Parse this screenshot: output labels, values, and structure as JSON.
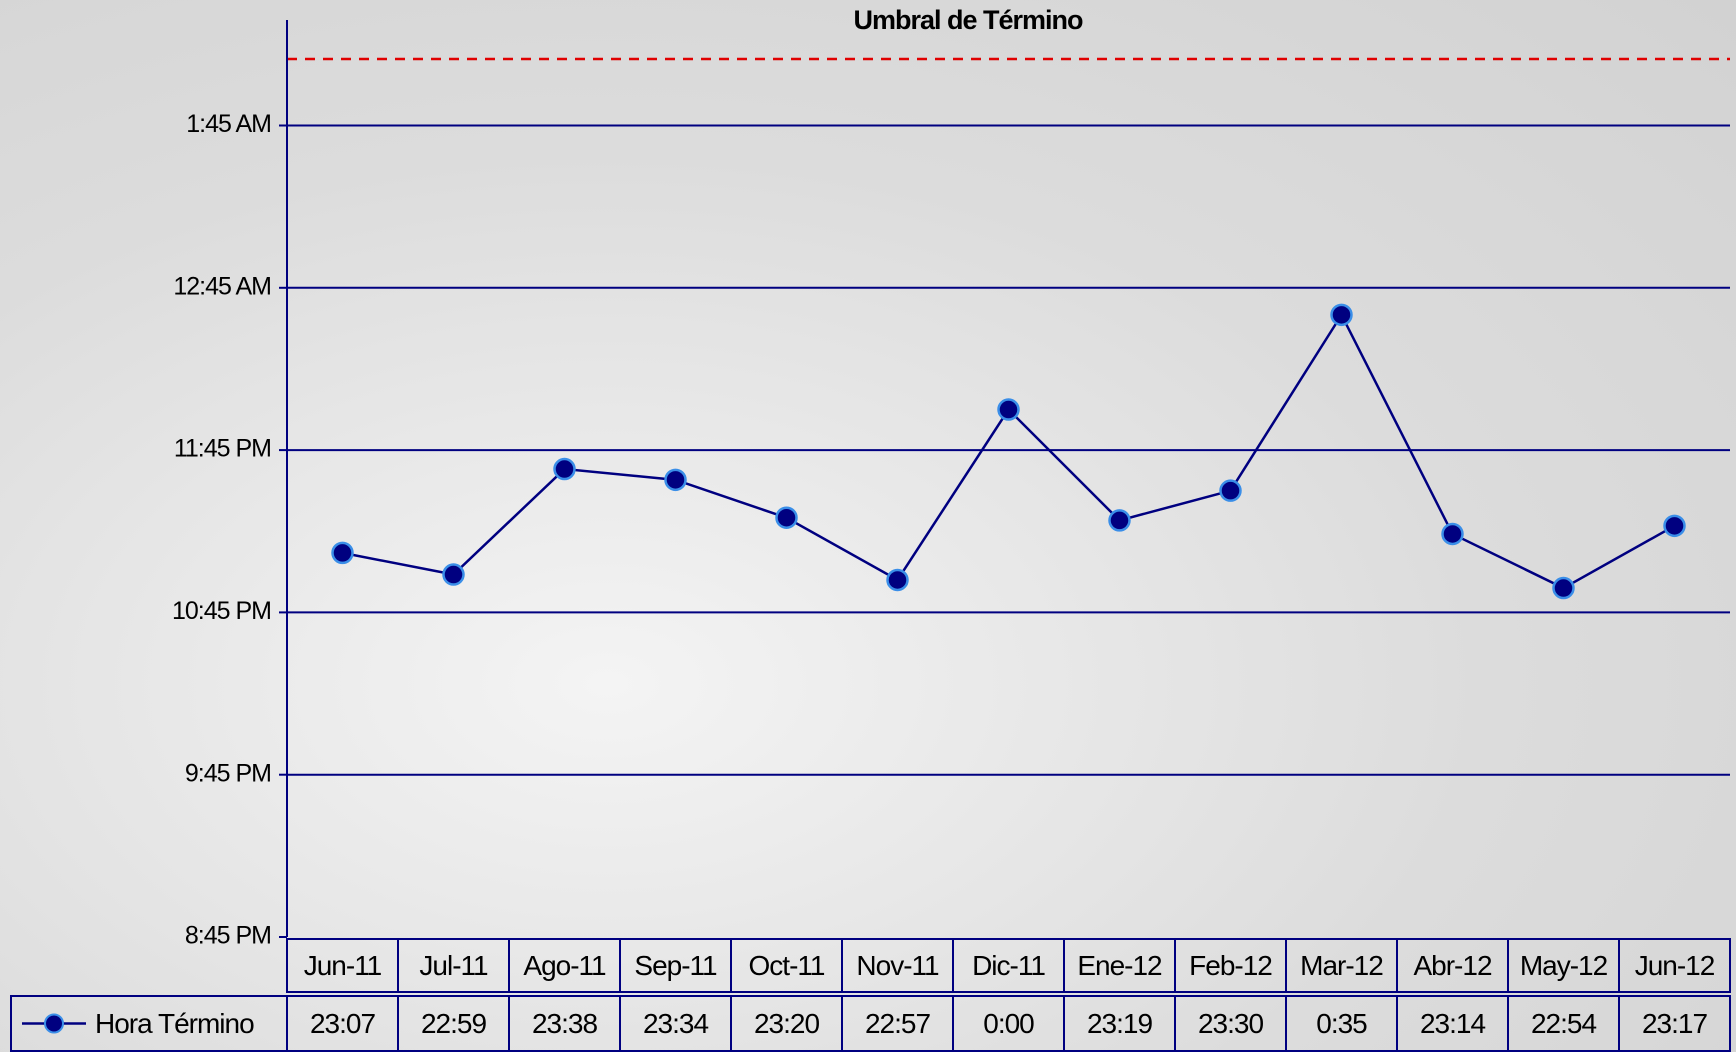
{
  "chart_data": {
    "type": "line",
    "title": "Umbral de Término",
    "categories": [
      "Jun-11",
      "Jul-11",
      "Ago-11",
      "Sep-11",
      "Oct-11",
      "Nov-11",
      "Dic-11",
      "Ene-12",
      "Feb-12",
      "Mar-12",
      "Abr-12",
      "May-12",
      "Jun-12"
    ],
    "series": [
      {
        "name": "Hora Término",
        "color": "#000080",
        "values": [
          23.1167,
          22.9833,
          23.6333,
          23.5667,
          23.3333,
          22.95,
          24.0,
          23.3167,
          23.5,
          24.5833,
          23.2333,
          22.9,
          23.2833
        ],
        "value_labels": [
          "23:07",
          "22:59",
          "23:38",
          "23:34",
          "23:20",
          "22:57",
          "0:00",
          "23:19",
          "23:30",
          "0:35",
          "23:14",
          "22:54",
          "23:17"
        ]
      }
    ],
    "ylim": [
      20.75,
      26.4
    ],
    "yticks": [
      {
        "value": 20.75,
        "label": "8:45 PM"
      },
      {
        "value": 21.75,
        "label": "9:45 PM"
      },
      {
        "value": 22.75,
        "label": "10:45 PM"
      },
      {
        "value": 23.75,
        "label": "11:45 PM"
      },
      {
        "value": 24.75,
        "label": "12:45 AM"
      },
      {
        "value": 25.75,
        "label": "1:45 AM"
      }
    ],
    "grid": true,
    "threshold": 26.16,
    "threshold_color": "#e00000"
  }
}
